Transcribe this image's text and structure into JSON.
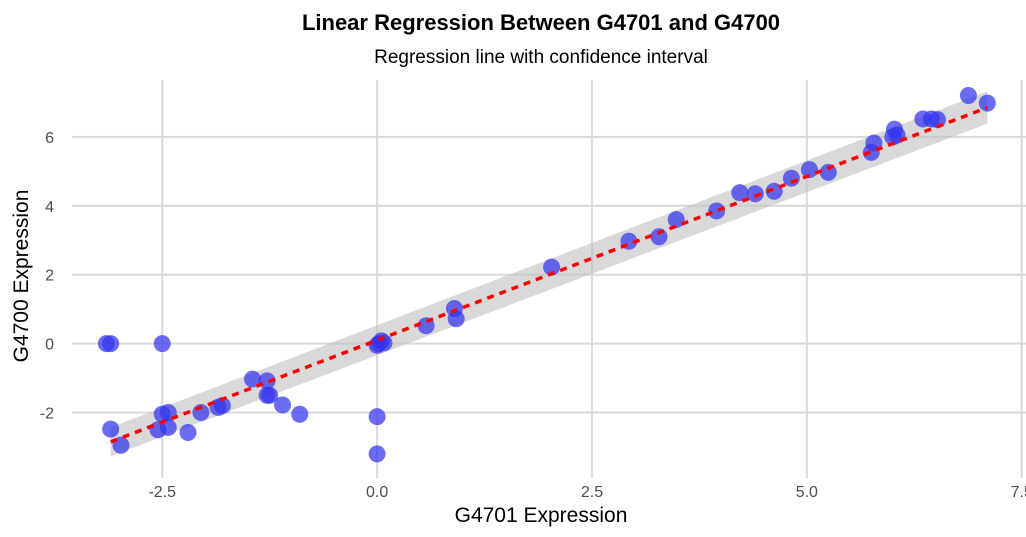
{
  "chart_data": {
    "type": "scatter",
    "title": "Linear Regression Between G4701 and G4700",
    "subtitle": "Regression line with confidence interval",
    "xlabel": "G4701 Expression",
    "ylabel": "G4700 Expression",
    "xlim": [
      -3.55,
      7.55
    ],
    "ylim": [
      -3.9,
      7.65
    ],
    "x_ticks": [
      -2.5,
      0.0,
      2.5,
      5.0,
      7.5
    ],
    "x_tick_labels": [
      "-2.5",
      "0.0",
      "2.5",
      "5.0",
      "7.5"
    ],
    "y_ticks": [
      -2,
      0,
      2,
      4,
      6
    ],
    "y_tick_labels": [
      "-2",
      "0",
      "2",
      "4",
      "6"
    ],
    "grid": true,
    "point_color": "#3333ee",
    "line_color": "#ff0000",
    "band_color": "#bfbfbf",
    "regression": {
      "x": [
        -3.1,
        7.1
      ],
      "y": [
        -2.85,
        6.85
      ]
    },
    "confidence_band": {
      "x": [
        -3.1,
        7.1
      ],
      "lower": [
        -3.27,
        6.38
      ],
      "upper": [
        -2.43,
        7.32
      ]
    },
    "points": [
      {
        "x": -3.15,
        "y": 0.0
      },
      {
        "x": -3.1,
        "y": 0.0
      },
      {
        "x": -2.5,
        "y": 0.0
      },
      {
        "x": -3.1,
        "y": -2.48
      },
      {
        "x": -2.98,
        "y": -2.95
      },
      {
        "x": -2.55,
        "y": -2.5
      },
      {
        "x": -2.5,
        "y": -2.05
      },
      {
        "x": -2.43,
        "y": -2.0
      },
      {
        "x": -2.43,
        "y": -2.43
      },
      {
        "x": -2.2,
        "y": -2.58
      },
      {
        "x": -2.05,
        "y": -2.0
      },
      {
        "x": -1.85,
        "y": -1.85
      },
      {
        "x": -1.8,
        "y": -1.8
      },
      {
        "x": -1.45,
        "y": -1.03
      },
      {
        "x": -1.28,
        "y": -1.08
      },
      {
        "x": -1.28,
        "y": -1.5
      },
      {
        "x": -1.25,
        "y": -1.5
      },
      {
        "x": -1.1,
        "y": -1.78
      },
      {
        "x": -0.9,
        "y": -2.05
      },
      {
        "x": 0.0,
        "y": -2.12
      },
      {
        "x": 0.0,
        "y": -3.2
      },
      {
        "x": 0.0,
        "y": -0.05
      },
      {
        "x": 0.02,
        "y": 0.0
      },
      {
        "x": 0.05,
        "y": 0.08
      },
      {
        "x": 0.08,
        "y": 0.02
      },
      {
        "x": 0.57,
        "y": 0.52
      },
      {
        "x": 0.9,
        "y": 1.02
      },
      {
        "x": 0.92,
        "y": 0.72
      },
      {
        "x": 2.03,
        "y": 2.22
      },
      {
        "x": 2.93,
        "y": 2.97
      },
      {
        "x": 3.28,
        "y": 3.1
      },
      {
        "x": 3.48,
        "y": 3.6
      },
      {
        "x": 3.95,
        "y": 3.85
      },
      {
        "x": 4.22,
        "y": 4.38
      },
      {
        "x": 4.4,
        "y": 4.35
      },
      {
        "x": 4.62,
        "y": 4.42
      },
      {
        "x": 4.82,
        "y": 4.8
      },
      {
        "x": 5.03,
        "y": 5.05
      },
      {
        "x": 5.25,
        "y": 4.97
      },
      {
        "x": 5.75,
        "y": 5.55
      },
      {
        "x": 5.78,
        "y": 5.82
      },
      {
        "x": 6.0,
        "y": 6.0
      },
      {
        "x": 6.02,
        "y": 6.22
      },
      {
        "x": 6.05,
        "y": 6.05
      },
      {
        "x": 6.35,
        "y": 6.52
      },
      {
        "x": 6.45,
        "y": 6.52
      },
      {
        "x": 6.52,
        "y": 6.5
      },
      {
        "x": 6.88,
        "y": 7.2
      },
      {
        "x": 7.1,
        "y": 6.98
      }
    ]
  }
}
